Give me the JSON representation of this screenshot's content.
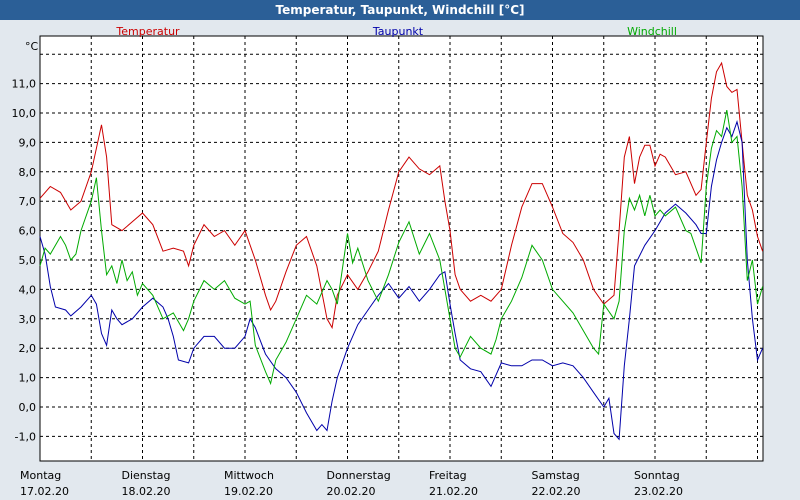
{
  "window_title": "Temperatur, Taupunkt, Windchill [°C]",
  "chart_data": {
    "type": "line",
    "title": "Temperatur, Taupunkt, Windchill [°C]",
    "ylabel": "°C",
    "ylim": [
      -1.4,
      12.8
    ],
    "y_ticks": [
      "11,0",
      "10,0",
      "9,0",
      "8,0",
      "7,0",
      "6,0",
      "5,0",
      "4,0",
      "3,0",
      "2,0",
      "1,0",
      "0,0",
      "-1,0"
    ],
    "y_tick_values": [
      11,
      10,
      9,
      8,
      7,
      6,
      5,
      4,
      3,
      2,
      1,
      0,
      -1
    ],
    "x_ticks": [
      {
        "day": "Montag",
        "date": "17.02.20",
        "t": 0
      },
      {
        "day": "Dienstag",
        "date": "18.02.20",
        "t": 1
      },
      {
        "day": "Mittwoch",
        "date": "19.02.20",
        "t": 2
      },
      {
        "day": "Donnerstag",
        "date": "20.02.20",
        "t": 3
      },
      {
        "day": "Freitag",
        "date": "21.02.20",
        "t": 4
      },
      {
        "day": "Samstag",
        "date": "22.02.20",
        "t": 5
      },
      {
        "day": "Sonntag",
        "date": "23.02.20",
        "t": 6
      }
    ],
    "xlim": [
      0,
      7
    ],
    "grid": true,
    "legend_placement": "top",
    "series": [
      {
        "name": "Temperatur",
        "color": "#cc0000",
        "points": [
          [
            0,
            7.1
          ],
          [
            0.1,
            7.5
          ],
          [
            0.2,
            7.3
          ],
          [
            0.3,
            6.7
          ],
          [
            0.4,
            7.0
          ],
          [
            0.5,
            8.0
          ],
          [
            0.55,
            8.8
          ],
          [
            0.6,
            9.6
          ],
          [
            0.65,
            8.5
          ],
          [
            0.7,
            6.2
          ],
          [
            0.8,
            6.0
          ],
          [
            0.9,
            6.3
          ],
          [
            1.0,
            6.6
          ],
          [
            1.1,
            6.2
          ],
          [
            1.2,
            5.3
          ],
          [
            1.3,
            5.4
          ],
          [
            1.4,
            5.3
          ],
          [
            1.45,
            4.8
          ],
          [
            1.5,
            5.5
          ],
          [
            1.6,
            6.2
          ],
          [
            1.7,
            5.8
          ],
          [
            1.8,
            6.0
          ],
          [
            1.9,
            5.5
          ],
          [
            2.0,
            6.0
          ],
          [
            2.1,
            5.0
          ],
          [
            2.2,
            3.8
          ],
          [
            2.25,
            3.3
          ],
          [
            2.3,
            3.6
          ],
          [
            2.4,
            4.6
          ],
          [
            2.5,
            5.5
          ],
          [
            2.6,
            5.8
          ],
          [
            2.7,
            4.8
          ],
          [
            2.8,
            3.0
          ],
          [
            2.85,
            2.7
          ],
          [
            2.9,
            3.8
          ],
          [
            3.0,
            4.5
          ],
          [
            3.1,
            4.0
          ],
          [
            3.2,
            4.6
          ],
          [
            3.3,
            5.3
          ],
          [
            3.4,
            6.7
          ],
          [
            3.5,
            8.0
          ],
          [
            3.6,
            8.5
          ],
          [
            3.7,
            8.1
          ],
          [
            3.8,
            7.9
          ],
          [
            3.9,
            8.2
          ],
          [
            3.95,
            7.0
          ],
          [
            4.0,
            6.0
          ],
          [
            4.05,
            4.5
          ],
          [
            4.1,
            4.0
          ],
          [
            4.2,
            3.6
          ],
          [
            4.3,
            3.8
          ],
          [
            4.4,
            3.6
          ],
          [
            4.5,
            4.0
          ],
          [
            4.6,
            5.5
          ],
          [
            4.7,
            6.8
          ],
          [
            4.8,
            7.6
          ],
          [
            4.9,
            7.6
          ],
          [
            5.0,
            6.8
          ],
          [
            5.1,
            5.9
          ],
          [
            5.2,
            5.6
          ],
          [
            5.3,
            5.0
          ],
          [
            5.4,
            4.0
          ],
          [
            5.5,
            3.5
          ],
          [
            5.6,
            3.8
          ],
          [
            5.65,
            6.0
          ],
          [
            5.7,
            8.5
          ],
          [
            5.75,
            9.2
          ],
          [
            5.8,
            7.6
          ],
          [
            5.85,
            8.5
          ],
          [
            5.9,
            8.9
          ],
          [
            5.95,
            8.9
          ],
          [
            6.0,
            8.2
          ],
          [
            6.05,
            8.6
          ],
          [
            6.1,
            8.5
          ],
          [
            6.15,
            8.2
          ],
          [
            6.2,
            7.9
          ],
          [
            6.3,
            8.0
          ],
          [
            6.35,
            7.6
          ],
          [
            6.4,
            7.2
          ],
          [
            6.45,
            7.4
          ],
          [
            6.5,
            9.0
          ],
          [
            6.55,
            10.5
          ],
          [
            6.6,
            11.4
          ],
          [
            6.65,
            11.7
          ],
          [
            6.7,
            10.9
          ],
          [
            6.75,
            10.7
          ],
          [
            6.8,
            10.8
          ],
          [
            6.85,
            9.0
          ],
          [
            6.9,
            7.2
          ],
          [
            6.95,
            6.7
          ],
          [
            7.0,
            5.8
          ],
          [
            7.05,
            5.3
          ]
        ]
      },
      {
        "name": "Taupunkt",
        "color": "#0000aa",
        "points": [
          [
            0,
            5.8
          ],
          [
            0.05,
            5.2
          ],
          [
            0.1,
            4.1
          ],
          [
            0.15,
            3.4
          ],
          [
            0.25,
            3.3
          ],
          [
            0.3,
            3.1
          ],
          [
            0.4,
            3.4
          ],
          [
            0.5,
            3.8
          ],
          [
            0.55,
            3.5
          ],
          [
            0.6,
            2.5
          ],
          [
            0.65,
            2.1
          ],
          [
            0.7,
            3.3
          ],
          [
            0.75,
            3.0
          ],
          [
            0.8,
            2.8
          ],
          [
            0.9,
            3.0
          ],
          [
            1.0,
            3.4
          ],
          [
            1.1,
            3.7
          ],
          [
            1.2,
            3.4
          ],
          [
            1.25,
            3.0
          ],
          [
            1.3,
            2.4
          ],
          [
            1.35,
            1.6
          ],
          [
            1.45,
            1.5
          ],
          [
            1.5,
            2.0
          ],
          [
            1.6,
            2.4
          ],
          [
            1.7,
            2.4
          ],
          [
            1.8,
            2.0
          ],
          [
            1.9,
            2.0
          ],
          [
            2.0,
            2.4
          ],
          [
            2.05,
            3.0
          ],
          [
            2.1,
            2.7
          ],
          [
            2.2,
            1.8
          ],
          [
            2.3,
            1.3
          ],
          [
            2.4,
            1.0
          ],
          [
            2.5,
            0.5
          ],
          [
            2.6,
            -0.2
          ],
          [
            2.7,
            -0.8
          ],
          [
            2.75,
            -0.6
          ],
          [
            2.8,
            -0.8
          ],
          [
            2.85,
            0.2
          ],
          [
            2.9,
            1.0
          ],
          [
            3.0,
            2.0
          ],
          [
            3.1,
            2.8
          ],
          [
            3.2,
            3.3
          ],
          [
            3.3,
            3.8
          ],
          [
            3.4,
            4.2
          ],
          [
            3.5,
            3.7
          ],
          [
            3.6,
            4.1
          ],
          [
            3.7,
            3.6
          ],
          [
            3.8,
            4.0
          ],
          [
            3.9,
            4.5
          ],
          [
            3.95,
            4.6
          ],
          [
            4.0,
            3.5
          ],
          [
            4.05,
            2.5
          ],
          [
            4.1,
            1.6
          ],
          [
            4.2,
            1.3
          ],
          [
            4.3,
            1.2
          ],
          [
            4.4,
            0.7
          ],
          [
            4.5,
            1.5
          ],
          [
            4.6,
            1.4
          ],
          [
            4.7,
            1.4
          ],
          [
            4.8,
            1.6
          ],
          [
            4.9,
            1.6
          ],
          [
            5.0,
            1.4
          ],
          [
            5.1,
            1.5
          ],
          [
            5.2,
            1.4
          ],
          [
            5.3,
            1.0
          ],
          [
            5.4,
            0.5
          ],
          [
            5.5,
            0.0
          ],
          [
            5.55,
            0.3
          ],
          [
            5.6,
            -0.9
          ],
          [
            5.65,
            -1.1
          ],
          [
            5.7,
            1.4
          ],
          [
            5.75,
            3.0
          ],
          [
            5.8,
            4.8
          ],
          [
            5.9,
            5.5
          ],
          [
            6.0,
            6.0
          ],
          [
            6.1,
            6.6
          ],
          [
            6.2,
            6.9
          ],
          [
            6.3,
            6.6
          ],
          [
            6.4,
            6.2
          ],
          [
            6.45,
            5.9
          ],
          [
            6.5,
            5.9
          ],
          [
            6.55,
            7.5
          ],
          [
            6.6,
            8.4
          ],
          [
            6.65,
            9.0
          ],
          [
            6.7,
            9.5
          ],
          [
            6.75,
            9.2
          ],
          [
            6.8,
            9.7
          ],
          [
            6.85,
            9.0
          ],
          [
            6.9,
            5.0
          ],
          [
            6.95,
            3.0
          ],
          [
            7.0,
            1.6
          ],
          [
            7.05,
            2.0
          ]
        ]
      },
      {
        "name": "Windchill",
        "color": "#00aa00",
        "points": [
          [
            0,
            4.8
          ],
          [
            0.05,
            5.4
          ],
          [
            0.1,
            5.2
          ],
          [
            0.2,
            5.8
          ],
          [
            0.25,
            5.5
          ],
          [
            0.3,
            5.0
          ],
          [
            0.35,
            5.2
          ],
          [
            0.4,
            6.0
          ],
          [
            0.5,
            7.0
          ],
          [
            0.55,
            7.8
          ],
          [
            0.6,
            6.0
          ],
          [
            0.65,
            4.5
          ],
          [
            0.7,
            4.8
          ],
          [
            0.75,
            4.2
          ],
          [
            0.8,
            5.0
          ],
          [
            0.85,
            4.3
          ],
          [
            0.9,
            4.6
          ],
          [
            0.95,
            3.8
          ],
          [
            1.0,
            4.2
          ],
          [
            1.1,
            3.8
          ],
          [
            1.2,
            3.0
          ],
          [
            1.3,
            3.2
          ],
          [
            1.4,
            2.6
          ],
          [
            1.45,
            3.0
          ],
          [
            1.5,
            3.6
          ],
          [
            1.6,
            4.3
          ],
          [
            1.7,
            4.0
          ],
          [
            1.8,
            4.3
          ],
          [
            1.9,
            3.7
          ],
          [
            2.0,
            3.5
          ],
          [
            2.05,
            3.6
          ],
          [
            2.1,
            2.1
          ],
          [
            2.2,
            1.2
          ],
          [
            2.25,
            0.8
          ],
          [
            2.3,
            1.6
          ],
          [
            2.4,
            2.2
          ],
          [
            2.5,
            3.0
          ],
          [
            2.6,
            3.8
          ],
          [
            2.7,
            3.5
          ],
          [
            2.8,
            4.3
          ],
          [
            2.85,
            4.0
          ],
          [
            2.9,
            3.5
          ],
          [
            3.0,
            5.9
          ],
          [
            3.05,
            4.9
          ],
          [
            3.1,
            5.4
          ],
          [
            3.2,
            4.3
          ],
          [
            3.3,
            3.6
          ],
          [
            3.4,
            4.5
          ],
          [
            3.5,
            5.6
          ],
          [
            3.6,
            6.3
          ],
          [
            3.7,
            5.2
          ],
          [
            3.8,
            5.9
          ],
          [
            3.9,
            5.0
          ],
          [
            3.95,
            4.0
          ],
          [
            4.0,
            3.0
          ],
          [
            4.05,
            2.0
          ],
          [
            4.1,
            1.7
          ],
          [
            4.2,
            2.4
          ],
          [
            4.3,
            2.0
          ],
          [
            4.4,
            1.8
          ],
          [
            4.45,
            2.3
          ],
          [
            4.5,
            3.0
          ],
          [
            4.6,
            3.6
          ],
          [
            4.7,
            4.4
          ],
          [
            4.8,
            5.5
          ],
          [
            4.9,
            5.0
          ],
          [
            5.0,
            4.0
          ],
          [
            5.1,
            3.6
          ],
          [
            5.2,
            3.2
          ],
          [
            5.3,
            2.6
          ],
          [
            5.4,
            2.0
          ],
          [
            5.45,
            1.8
          ],
          [
            5.5,
            3.5
          ],
          [
            5.6,
            3.0
          ],
          [
            5.65,
            3.6
          ],
          [
            5.7,
            6.0
          ],
          [
            5.75,
            7.1
          ],
          [
            5.8,
            6.7
          ],
          [
            5.85,
            7.2
          ],
          [
            5.9,
            6.5
          ],
          [
            5.95,
            7.2
          ],
          [
            6.0,
            6.5
          ],
          [
            6.05,
            6.7
          ],
          [
            6.1,
            6.5
          ],
          [
            6.2,
            6.8
          ],
          [
            6.3,
            6.0
          ],
          [
            6.35,
            5.9
          ],
          [
            6.4,
            5.4
          ],
          [
            6.45,
            4.9
          ],
          [
            6.5,
            7.5
          ],
          [
            6.55,
            8.8
          ],
          [
            6.6,
            9.4
          ],
          [
            6.65,
            9.2
          ],
          [
            6.7,
            10.1
          ],
          [
            6.75,
            9.0
          ],
          [
            6.8,
            9.2
          ],
          [
            6.85,
            7.5
          ],
          [
            6.9,
            4.3
          ],
          [
            6.95,
            5.0
          ],
          [
            7.0,
            3.5
          ],
          [
            7.05,
            4.1
          ]
        ]
      }
    ]
  }
}
